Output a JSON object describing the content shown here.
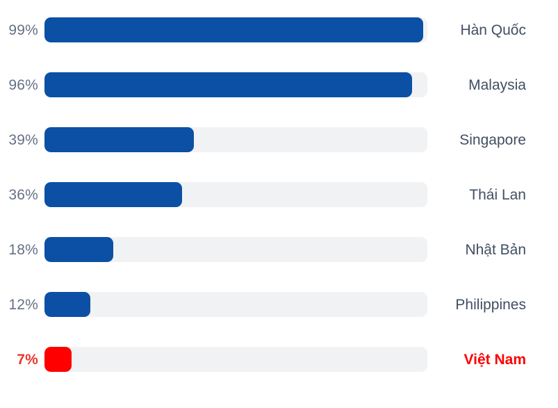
{
  "chart_data": {
    "type": "bar",
    "orientation": "horizontal",
    "title": "",
    "xlabel": "",
    "ylabel": "",
    "xlim": [
      0,
      100
    ],
    "grid": false,
    "legend": false,
    "categories": [
      "Hàn Quốc",
      "Malaysia",
      "Singapore",
      "Thái Lan",
      "Nhật Bản",
      "Philippines",
      "Việt Nam"
    ],
    "values": [
      99,
      96,
      39,
      36,
      18,
      12,
      7
    ],
    "value_labels": [
      "99%",
      "96%",
      "39%",
      "36%",
      "18%",
      "12%",
      "7%"
    ],
    "highlight_index": 6,
    "colors": {
      "bar": "#0b50a4",
      "highlight_bar": "#ff0000",
      "track": "#f1f2f4",
      "value_label": "#667085",
      "highlight_value_label": "#e8392b",
      "category_label": "#414e63",
      "highlight_category_label": "#ff0000"
    }
  }
}
